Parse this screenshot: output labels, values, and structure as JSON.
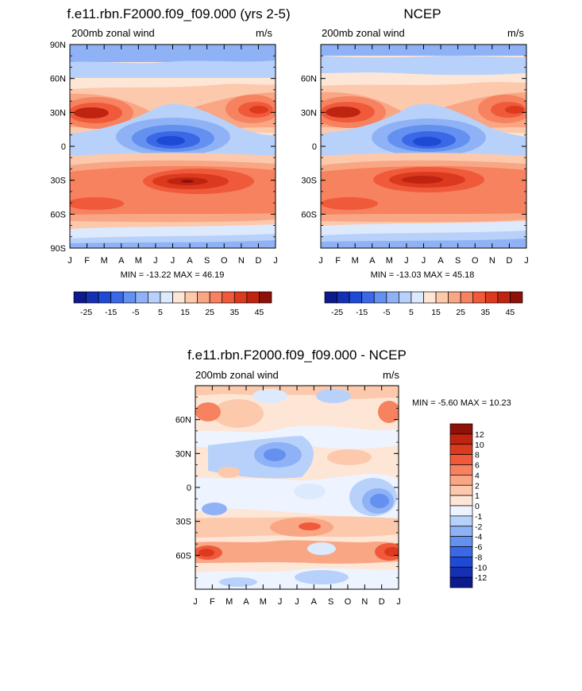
{
  "chart_data": [
    {
      "type": "heatmap",
      "title": "f.e11.rbn.F2000.f09_f09.000 (yrs 2-5)",
      "left_label": "200mb zonal wind",
      "right_label": "m/s",
      "x_ticks": [
        "J",
        "F",
        "M",
        "A",
        "M",
        "J",
        "J",
        "A",
        "S",
        "O",
        "N",
        "D",
        "J"
      ],
      "y_ticks": [
        "90N",
        "60N",
        "30N",
        "0",
        "30S",
        "60S",
        "90S"
      ],
      "y_range": [
        -90,
        90
      ],
      "stats_label": "MIN = -13.22 MAX =  46.19",
      "min": -13.22,
      "max": 46.19,
      "contour_levels": [
        -25,
        -20,
        -15,
        -10,
        -5,
        0,
        5,
        10,
        15,
        20,
        25,
        30,
        35,
        40,
        45,
        50
      ]
    },
    {
      "type": "heatmap",
      "title": "NCEP",
      "left_label": "200mb zonal wind",
      "right_label": "m/s",
      "x_ticks": [
        "J",
        "F",
        "M",
        "A",
        "M",
        "J",
        "J",
        "A",
        "S",
        "O",
        "N",
        "D",
        "J"
      ],
      "y_ticks": [
        "60N",
        "30N",
        "0",
        "30S",
        "60S"
      ],
      "y_range": [
        -90,
        90
      ],
      "stats_label": "MIN = -13.03 MAX =  45.18",
      "min": -13.03,
      "max": 45.18,
      "contour_levels": [
        -25,
        -20,
        -15,
        -10,
        -5,
        0,
        5,
        10,
        15,
        20,
        25,
        30,
        35,
        40,
        45,
        50
      ]
    },
    {
      "type": "heatmap",
      "title": "f.e11.rbn.F2000.f09_f09.000 - NCEP",
      "left_label": "200mb zonal wind",
      "right_label": "m/s",
      "x_ticks": [
        "J",
        "F",
        "M",
        "A",
        "M",
        "J",
        "J",
        "A",
        "S",
        "O",
        "N",
        "D",
        "J"
      ],
      "y_ticks": [
        "60N",
        "30N",
        "0",
        "30S",
        "60S"
      ],
      "y_range": [
        -90,
        90
      ],
      "stats_label": "MIN =  -5.60 MAX =  10.23",
      "min": -5.6,
      "max": 10.23,
      "contour_levels": [
        -12,
        -10,
        -8,
        -6,
        -4,
        -2,
        -1,
        0,
        1,
        2,
        4,
        6,
        8,
        10,
        12
      ]
    }
  ],
  "colorbar_top": {
    "labels": [
      "-25",
      "-15",
      "-5",
      "5",
      "15",
      "25",
      "35",
      "45"
    ],
    "colors": [
      "#0d1a8c",
      "#1530b5",
      "#1f4ad6",
      "#3a68e6",
      "#6490f0",
      "#8eb2f5",
      "#b8d1fa",
      "#dde9fd",
      "#fde6d6",
      "#fcc9ad",
      "#f9a685",
      "#f6825f",
      "#f05a3a",
      "#dc3a1f",
      "#bf2411",
      "#8d1108"
    ]
  },
  "colorbar_diff": {
    "labels": [
      "12",
      "10",
      "8",
      "6",
      "4",
      "2",
      "1",
      "0",
      "-1",
      "-2",
      "-4",
      "-6",
      "-8",
      "-10",
      "-12"
    ],
    "colors": [
      "#8d1108",
      "#bf2411",
      "#dc3a1f",
      "#f05a3a",
      "#f6825f",
      "#f9a685",
      "#fcc9ad",
      "#fde6d6",
      "#eef4ff",
      "#b8d1fa",
      "#8eb2f5",
      "#6490f0",
      "#3a68e6",
      "#1f4ad6",
      "#1530b5",
      "#0d1a8c"
    ]
  }
}
